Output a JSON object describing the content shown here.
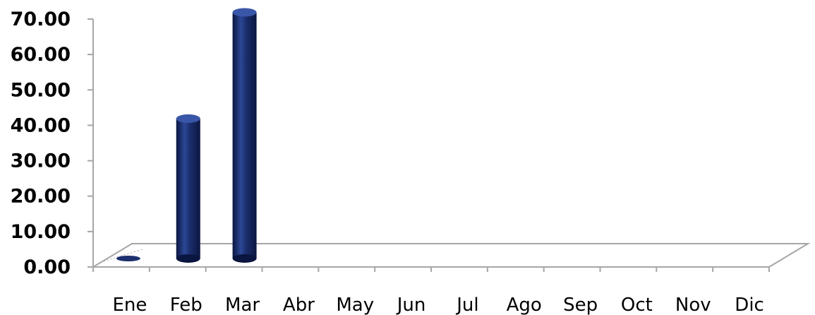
{
  "chart_data": {
    "type": "bar",
    "style": "3d-cylinder",
    "categories": [
      "Ene",
      "Feb",
      "Mar",
      "Abr",
      "May",
      "Jun",
      "Jul",
      "Ago",
      "Sep",
      "Oct",
      "Nov",
      "Dic"
    ],
    "values": [
      0.2,
      39.5,
      69.5,
      0,
      0,
      0,
      0,
      0,
      0,
      0,
      0,
      0
    ],
    "ylim": [
      0,
      70
    ],
    "yticks": [
      "0.00",
      "10.00",
      "20.00",
      "30.00",
      "40.00",
      "50.00",
      "60.00",
      "70.00"
    ],
    "title": "",
    "xlabel": "",
    "ylabel": "",
    "grid": false,
    "legend": "none",
    "colors": {
      "bar": "#1c2f6e",
      "bar_highlight": "#3a56a8",
      "bar_shadow": "#0a1540",
      "axis": "#a6a6a6"
    }
  }
}
